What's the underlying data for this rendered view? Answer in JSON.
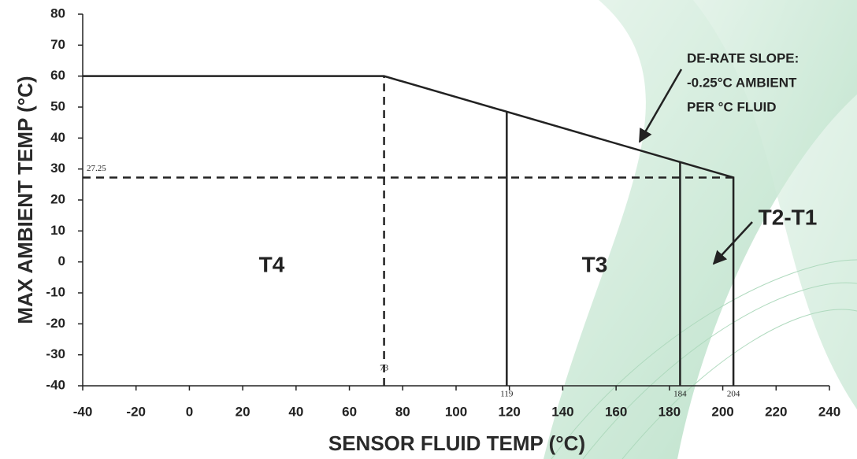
{
  "chart_data": {
    "type": "line",
    "x_label": "SENSOR FLUID TEMP (°C)",
    "y_label": "MAX AMBIENT TEMP (°C)",
    "xlim": [
      -40,
      240
    ],
    "ylim": [
      -40,
      80
    ],
    "xticks": [
      -40,
      -20,
      0,
      20,
      40,
      60,
      80,
      100,
      120,
      140,
      160,
      180,
      200,
      220,
      240
    ],
    "yticks": [
      -40,
      -30,
      -20,
      -10,
      0,
      10,
      20,
      30,
      40,
      50,
      60,
      70,
      80
    ],
    "color": "#222222",
    "series": [
      {
        "x": [
          -40,
          73,
          204,
          204
        ],
        "values": [
          60,
          60,
          27.25,
          -40
        ],
        "dashed": false
      },
      {
        "x": [
          119,
          119
        ],
        "values": [
          -40,
          48.5
        ],
        "dashed": false
      },
      {
        "x": [
          184,
          184
        ],
        "values": [
          -40,
          32.25
        ],
        "dashed": false
      },
      {
        "x": [
          73,
          73
        ],
        "values": [
          -40,
          60
        ],
        "dashed": true
      },
      {
        "x": [
          -40,
          204
        ],
        "values": [
          27.25,
          27.25
        ],
        "dashed": true
      }
    ],
    "point_labels": [
      {
        "axis": "y",
        "value": 27.25
      },
      {
        "axis": "x",
        "value": 73
      },
      {
        "axis": "x",
        "value": 119
      },
      {
        "axis": "x",
        "value": 184
      },
      {
        "axis": "x",
        "value": 204
      }
    ],
    "zones": [
      "T4",
      "T3",
      "T2-T1"
    ],
    "annotation": [
      "DE-RATE SLOPE:",
      "-0.25°C AMBIENT",
      "PER °C FLUID"
    ]
  }
}
